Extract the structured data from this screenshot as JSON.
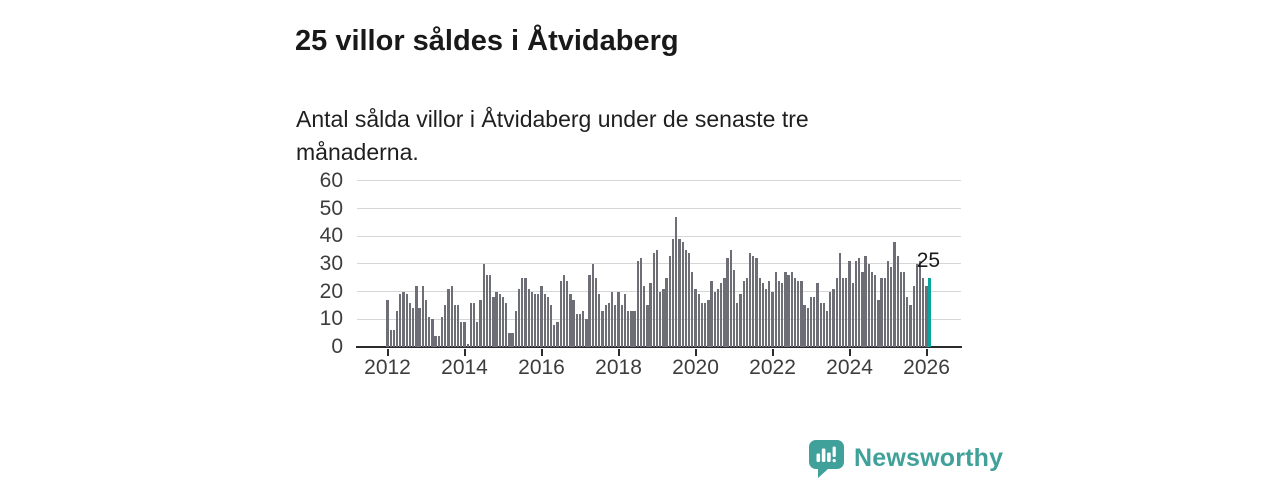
{
  "header": {
    "title": "25 villor såldes i Åtvidaberg",
    "subtitle": "Antal sålda villor i Åtvidaberg under de senaste tre månaderna."
  },
  "chart_data": {
    "type": "bar",
    "title": "25 villor såldes i Åtvidaberg",
    "xlabel": "",
    "ylabel": "",
    "ylim": [
      0,
      60
    ],
    "yticks": [
      0,
      10,
      20,
      30,
      40,
      50,
      60
    ],
    "xticks": [
      2012,
      2014,
      2016,
      2018,
      2020,
      2022,
      2024,
      2026
    ],
    "x_start_month": "2012-01",
    "x_end_month": "2026-02",
    "grid": true,
    "legend_position": "none",
    "bar_color": "#6e6e77",
    "highlight_color": "#0aa49e",
    "highlight": {
      "index": 169,
      "label": "25"
    },
    "values": [
      17,
      6,
      6,
      13,
      19,
      20,
      19,
      16,
      14,
      22,
      14,
      22,
      17,
      11,
      10,
      4,
      4,
      11,
      15,
      21,
      22,
      15,
      15,
      9,
      9,
      1,
      16,
      16,
      9,
      17,
      30,
      26,
      26,
      18,
      20,
      19,
      18,
      16,
      5,
      5,
      13,
      21,
      25,
      25,
      21,
      20,
      19,
      19,
      22,
      19,
      18,
      15,
      8,
      9,
      24,
      26,
      24,
      19,
      17,
      12,
      12,
      13,
      10,
      26,
      30,
      25,
      19,
      13,
      15,
      16,
      20,
      15,
      20,
      15,
      19,
      13,
      13,
      13,
      31,
      32,
      22,
      15,
      23,
      34,
      35,
      20,
      21,
      25,
      33,
      39,
      47,
      39,
      38,
      35,
      34,
      27,
      21,
      19,
      16,
      16,
      17,
      24,
      20,
      21,
      23,
      25,
      32,
      35,
      28,
      16,
      19,
      24,
      25,
      34,
      33,
      32,
      25,
      23,
      21,
      24,
      20,
      27,
      24,
      23,
      27,
      26,
      27,
      25,
      24,
      24,
      15,
      14,
      18,
      18,
      23,
      16,
      16,
      13,
      20,
      21,
      25,
      34,
      25,
      25,
      31,
      23,
      31,
      32,
      27,
      33,
      30,
      27,
      26,
      17,
      25,
      25,
      31,
      29,
      38,
      33,
      27,
      27,
      18,
      15,
      22,
      30,
      31,
      25,
      22,
      25
    ]
  },
  "branding": {
    "name": "Newsworthy",
    "color": "#40a09a",
    "icon": "speech-bubble-bar-chart-icon"
  }
}
